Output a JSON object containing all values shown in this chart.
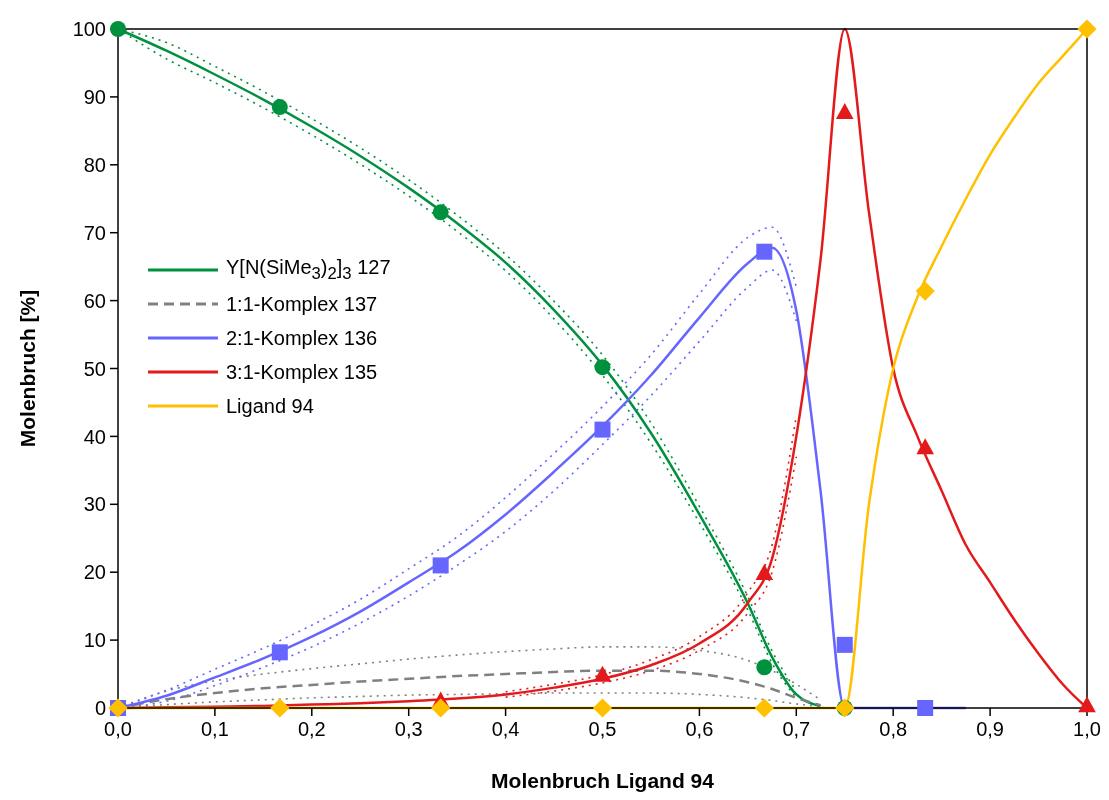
{
  "chart_data": {
    "type": "line",
    "xlabel": "Molenbruch Ligand 94",
    "ylabel": "Molenbruch [%]",
    "x": [
      0,
      0.05,
      0.1,
      0.15,
      0.2,
      0.25,
      0.3,
      0.35,
      0.4,
      0.45,
      0.5,
      0.55,
      0.6,
      0.65,
      0.675,
      0.7,
      0.725,
      0.75,
      0.775,
      0.8,
      0.825,
      0.85,
      0.875,
      0.9,
      0.925,
      0.95,
      0.975,
      1
    ],
    "xlim": [
      0,
      1
    ],
    "xticks": [
      {
        "value": 0,
        "label": "0,0"
      },
      {
        "value": 0.1,
        "label": "0,1"
      },
      {
        "value": 0.2,
        "label": "0,2"
      },
      {
        "value": 0.3,
        "label": "0,3"
      },
      {
        "value": 0.4,
        "label": "0,4"
      },
      {
        "value": 0.5,
        "label": "0,5"
      },
      {
        "value": 0.6,
        "label": "0,6"
      },
      {
        "value": 0.7,
        "label": "0,7"
      },
      {
        "value": 0.8,
        "label": "0,8"
      },
      {
        "value": 0.9,
        "label": "0,9"
      },
      {
        "value": 1,
        "label": "1,0"
      }
    ],
    "ylim": [
      0,
      100
    ],
    "yticks": [
      0,
      10,
      20,
      30,
      40,
      50,
      60,
      70,
      80,
      90,
      100
    ],
    "legend": "left",
    "marker": "none",
    "series": [
      {
        "color": "#00913f",
        "line_style": "dotted",
        "values": [
          100,
          95.6,
          92.1,
          88.4,
          84.4,
          80.1,
          75.4,
          70.2,
          64.4,
          57.3,
          49,
          39,
          27.3,
          14.4,
          6.6,
          1.5,
          null,
          null,
          null,
          null,
          null,
          null,
          null,
          null,
          null,
          null,
          null,
          null
        ]
      },
      {
        "color": "#00913f",
        "line_style": "dotted",
        "values": [
          100,
          98,
          94.5,
          90.8,
          86.8,
          82.5,
          77.8,
          72.6,
          66.8,
          59.9,
          52,
          42,
          29.7,
          16.4,
          8.4,
          2.5,
          null,
          null,
          null,
          null,
          null,
          null,
          null,
          null,
          null,
          null,
          null,
          null
        ]
      },
      {
        "color": "#808080",
        "line_style": "dotted",
        "values": [
          0,
          0.5,
          0.9,
          1.2,
          1.5,
          1.7,
          1.9,
          2,
          2.1,
          2.2,
          2.2,
          2.2,
          2,
          1.5,
          1.1,
          0.6,
          0.2,
          null,
          null,
          null,
          null,
          null,
          null,
          null,
          null,
          null,
          null,
          null
        ]
      },
      {
        "color": "#808080",
        "line_style": "dotted",
        "values": [
          0,
          2.5,
          4,
          5,
          5.8,
          6.5,
          7.2,
          7.8,
          8.3,
          8.7,
          9,
          9,
          8.5,
          7,
          5.5,
          3.5,
          1.2,
          null,
          null,
          null,
          null,
          null,
          null,
          null,
          null,
          null,
          null,
          null
        ]
      },
      {
        "color": "#6666ff",
        "line_style": "dotted",
        "values": [
          0,
          1,
          3.3,
          6,
          9,
          12.5,
          16.5,
          21,
          26,
          32,
          38.8,
          46,
          54,
          62,
          64.5,
          57,
          null,
          null,
          null,
          null,
          null,
          null,
          null,
          null,
          null,
          null,
          null,
          null
        ]
      },
      {
        "color": "#6666ff",
        "line_style": "dotted",
        "values": [
          0,
          2.6,
          5.7,
          8.8,
          12.2,
          16,
          20.5,
          25.2,
          31,
          37.5,
          44.4,
          52,
          61,
          69.3,
          70.8,
          62,
          null,
          null,
          null,
          null,
          null,
          null,
          null,
          null,
          null,
          null,
          null,
          null
        ]
      },
      {
        "color": "#e31a1c",
        "line_style": "dotted",
        "values": [
          null,
          null,
          null,
          null,
          null,
          null,
          null,
          null,
          1.6,
          2.5,
          3.7,
          5.5,
          8.5,
          14,
          20,
          37,
          null,
          null,
          null,
          null,
          null,
          null,
          null,
          null,
          null,
          null,
          null,
          null
        ]
      },
      {
        "color": "#e31a1c",
        "line_style": "dotted",
        "values": [
          null,
          null,
          null,
          null,
          null,
          null,
          null,
          null,
          2.4,
          3.5,
          4.9,
          7.1,
          10.5,
          17,
          24,
          43,
          null,
          null,
          null,
          null,
          null,
          null,
          null,
          null,
          null,
          null,
          null,
          null
        ]
      },
      {
        "name": "Y[N(SiMe$_{3}$)$_{2}$]$_{3}$ 127",
        "color": "#00913f",
        "line_style": "solid",
        "values": [
          100,
          96.8,
          93.3,
          89.6,
          85.6,
          81.3,
          76.6,
          71.4,
          65.6,
          58.6,
          50.5,
          40.5,
          28.5,
          15.4,
          7.5,
          2,
          0.3,
          null,
          null,
          null,
          null,
          null,
          null,
          null,
          null,
          null,
          null,
          null
        ]
      },
      {
        "name": "1:1-Komplex 137",
        "color": "#808080",
        "line_style": "dashed",
        "values": [
          0,
          1.3,
          2.2,
          2.9,
          3.4,
          3.9,
          4.3,
          4.7,
          5,
          5.3,
          5.5,
          5.5,
          5,
          3.8,
          2.8,
          1.5,
          0.4,
          null,
          null,
          null,
          null,
          null,
          null,
          null,
          null,
          null,
          null,
          null
        ]
      },
      {
        "name": "2:1-Komplex 136",
        "color": "#6666ff",
        "line_style": "solid",
        "values": [
          0,
          1.8,
          4.5,
          7.3,
          10.5,
          14.2,
          18.5,
          23,
          28.5,
          34.8,
          41.5,
          49,
          57.5,
          65.5,
          67.8,
          58.5,
          32,
          0,
          0,
          0,
          0,
          0,
          0,
          null,
          null,
          null,
          null,
          null
        ]
      },
      {
        "name": "3:1-Komplex 135",
        "color": "#e31a1c",
        "line_style": "solid",
        "values": [
          0,
          0.1,
          0.2,
          0.3,
          0.5,
          0.7,
          1,
          1.4,
          2,
          3,
          4.3,
          6.3,
          9.5,
          15.5,
          22,
          40,
          66,
          100,
          73,
          50,
          40,
          32,
          24,
          18.5,
          13,
          8,
          3.5,
          0
        ]
      },
      {
        "name": "Ligand 94",
        "color": "#ffc000",
        "line_style": "solid",
        "values": [
          0,
          0,
          0,
          0,
          0,
          0,
          0,
          0,
          0,
          0,
          0,
          0,
          0,
          0,
          0,
          0,
          0,
          0,
          30,
          50,
          60.5,
          68,
          75,
          81.5,
          87,
          92,
          96,
          100
        ]
      },
      {
        "type": "scatter",
        "color": "#00913f",
        "marker": "circle",
        "x": [
          0,
          0.167,
          0.333,
          0.5,
          0.667,
          0.75
        ],
        "values": [
          100,
          88.5,
          73,
          50.2,
          6,
          0
        ]
      },
      {
        "type": "scatter",
        "color": "#6666ff",
        "marker": "square",
        "x": [
          0,
          0.167,
          0.333,
          0.5,
          0.667,
          0.75,
          0.833
        ],
        "values": [
          0,
          8.2,
          21,
          41,
          67.2,
          9.3,
          0
        ]
      },
      {
        "type": "scatter",
        "color": "#e31a1c",
        "marker": "triangle",
        "x": [
          0.333,
          0.5,
          0.667,
          0.75,
          0.833,
          1
        ],
        "values": [
          1,
          4.8,
          19.8,
          87.7,
          38.3,
          0.3
        ]
      },
      {
        "type": "scatter",
        "color": "#ffc000",
        "marker": "diamond",
        "x": [
          0,
          0.167,
          0.333,
          0.5,
          0.667,
          0.75,
          0.833,
          1
        ],
        "values": [
          0,
          0,
          0,
          0,
          0,
          0,
          61.4,
          100
        ]
      }
    ]
  }
}
